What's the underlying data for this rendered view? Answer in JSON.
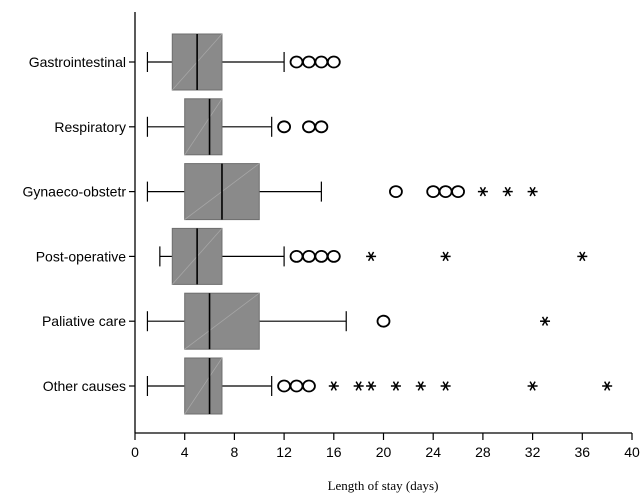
{
  "chart_data": {
    "type": "boxplot",
    "orientation": "horizontal",
    "title": "",
    "xlabel": "Length of stay (days)",
    "ylabel": "",
    "xlim": [
      0,
      40
    ],
    "xticks": [
      0,
      4,
      8,
      12,
      16,
      20,
      24,
      28,
      32,
      36,
      40
    ],
    "grid": false,
    "box_color": "#8a8a8a",
    "categories": [
      "Gastrointestinal",
      "Respiratory",
      "Gynaeco-obstetr",
      "Post-operative",
      "Paliative care",
      "Other causes"
    ],
    "boxes": [
      {
        "category": "Gastrointestinal",
        "whisker_low": 1,
        "q1": 3,
        "median": 5,
        "q3": 7,
        "whisker_high": 12,
        "outliers": [
          13,
          14,
          15,
          16
        ],
        "extremes": []
      },
      {
        "category": "Respiratory",
        "whisker_low": 1,
        "q1": 4,
        "median": 6,
        "q3": 7,
        "whisker_high": 11,
        "outliers": [
          12,
          14,
          15
        ],
        "extremes": []
      },
      {
        "category": "Gynaeco-obstetr",
        "whisker_low": 1,
        "q1": 4,
        "median": 7,
        "q3": 10,
        "whisker_high": 15,
        "outliers": [
          21,
          24,
          25,
          26
        ],
        "extremes": [
          28,
          30,
          32
        ]
      },
      {
        "category": "Post-operative",
        "whisker_low": 2,
        "q1": 3,
        "median": 5,
        "q3": 7,
        "whisker_high": 12,
        "outliers": [
          13,
          14,
          15,
          16
        ],
        "extremes": [
          19,
          25,
          36
        ]
      },
      {
        "category": "Paliative care",
        "whisker_low": 1,
        "q1": 4,
        "median": 6,
        "q3": 10,
        "whisker_high": 17,
        "outliers": [
          20
        ],
        "extremes": [
          33
        ]
      },
      {
        "category": "Other causes",
        "whisker_low": 1,
        "q1": 4,
        "median": 6,
        "q3": 7,
        "whisker_high": 11,
        "outliers": [
          12,
          13,
          14
        ],
        "extremes": [
          16,
          18,
          19,
          21,
          23,
          25,
          32,
          38
        ]
      }
    ]
  }
}
